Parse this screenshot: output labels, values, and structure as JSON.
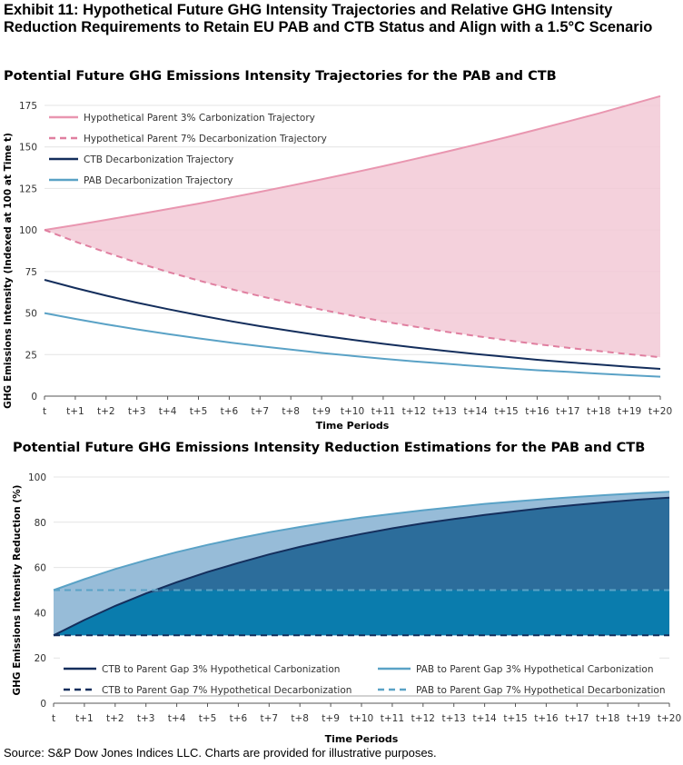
{
  "exhibit_title": "Exhibit 11: Hypothetical Future GHG Intensity Trajectories and Relative GHG Intensity Reduction Requirements to Retain EU PAB and CTB Status and Align with a 1.5°C Scenario",
  "source_note": "Source: S&P Dow Jones Indices LLC.  Charts are provided for illustrative purposes.",
  "colors": {
    "parent3": "#e996b0",
    "parent7": "#e07fa0",
    "ctb": "#142e5c",
    "pab": "#5aa2c6",
    "shade_top": "#f2c9d6",
    "gap_light": "#97bcd8",
    "gap_dark": "#2c6d9b",
    "gap_teal": "#0a7cad",
    "axis": "#555555",
    "grid": "#e4e4e4"
  },
  "chart_data": [
    {
      "type": "line",
      "title": "Potential Future GHG Emissions Intensity Trajectories for the PAB and CTB",
      "xlabel": "Time Periods",
      "ylabel": "GHG Emissions Intensity (Indexed at 100 at Time t)",
      "ylim": [
        0,
        175
      ],
      "yticks": [
        "0",
        "25",
        "50",
        "75",
        "100",
        "125",
        "150",
        "175"
      ],
      "categories": [
        "t",
        "t+1",
        "t+2",
        "t+3",
        "t+4",
        "t+5",
        "t+6",
        "t+7",
        "t+8",
        "t+9",
        "t+10",
        "t+11",
        "t+12",
        "t+13",
        "t+14",
        "t+15",
        "t+16",
        "t+17",
        "t+18",
        "t+19",
        "t+20"
      ],
      "series": [
        {
          "name": "Hypothetical Parent 3% Carbonization Trajectory",
          "style": "solid",
          "color_key": "parent3",
          "values": [
            100,
            103,
            106.1,
            109.3,
            112.6,
            115.9,
            119.4,
            123,
            126.7,
            130.5,
            134.4,
            138.4,
            142.6,
            146.9,
            151.3,
            155.8,
            160.5,
            165.3,
            170.2,
            175.4,
            180.6
          ]
        },
        {
          "name": "Hypothetical Parent 7% Decarbonization Trajectory",
          "style": "dashed",
          "color_key": "parent7",
          "values": [
            100,
            93,
            86.5,
            80.4,
            74.8,
            69.6,
            64.7,
            60.2,
            56,
            52,
            48.4,
            45,
            41.9,
            38.9,
            36.2,
            33.7,
            31.3,
            29.1,
            27.1,
            25.2,
            23.4
          ]
        },
        {
          "name": "CTB Decarbonization Trajectory",
          "style": "solid",
          "color_key": "ctb",
          "values": [
            70,
            65.1,
            60.5,
            56.3,
            52.4,
            48.7,
            45.3,
            42.1,
            39.2,
            36.4,
            33.9,
            31.5,
            29.3,
            27.3,
            25.4,
            23.6,
            21.9,
            20.4,
            19,
            17.6,
            16.4
          ]
        },
        {
          "name": "PAB Decarbonization Trajectory",
          "style": "solid",
          "color_key": "pab",
          "values": [
            50,
            46.5,
            43.2,
            40.2,
            37.4,
            34.8,
            32.3,
            30.1,
            28,
            26,
            24.2,
            22.5,
            20.9,
            19.5,
            18.1,
            16.8,
            15.6,
            14.6,
            13.5,
            12.6,
            11.7
          ]
        }
      ],
      "shaded_area_between": [
        "Hypothetical Parent 3% Carbonization Trajectory",
        "Hypothetical Parent 7% Decarbonization Trajectory"
      ]
    },
    {
      "type": "area",
      "title": "Potential Future GHG Emissions Intensity Reduction Estimations for the PAB and CTB",
      "xlabel": "Time Periods",
      "ylabel": "GHG Emissions Intensity Reduction (%)",
      "ylim": [
        0,
        100
      ],
      "yticks": [
        "0",
        "20",
        "40",
        "60",
        "80",
        "100"
      ],
      "categories": [
        "t",
        "t+1",
        "t+2",
        "t+3",
        "t+4",
        "t+5",
        "t+6",
        "t+7",
        "t+8",
        "t+9",
        "t+10",
        "t+11",
        "t+12",
        "t+13",
        "t+14",
        "t+15",
        "t+16",
        "t+17",
        "t+18",
        "t+19",
        "t+20"
      ],
      "series": [
        {
          "name": "CTB to Parent Gap 3% Hypothetical Carbonization",
          "style": "solid",
          "color_key": "ctb",
          "values": [
            30,
            36.8,
            43,
            48.5,
            53.5,
            58,
            62,
            65.8,
            69.1,
            72.1,
            74.8,
            77.3,
            79.5,
            81.4,
            83.2,
            84.8,
            86.4,
            87.7,
            88.9,
            90,
            90.9
          ]
        },
        {
          "name": "PAB to Parent Gap 3% Hypothetical Carbonization",
          "style": "solid",
          "color_key": "pab",
          "values": [
            50,
            54.8,
            59.3,
            63.2,
            66.8,
            70,
            72.9,
            75.6,
            77.9,
            80.1,
            82,
            83.7,
            85.3,
            86.7,
            88.1,
            89.2,
            90.3,
            91.2,
            92.1,
            92.8,
            93.5
          ]
        },
        {
          "name": "CTB to Parent Gap 7% Hypothetical Decarbonization",
          "style": "dashed",
          "color_key": "ctb",
          "values": [
            30,
            30,
            30,
            30,
            30,
            30,
            30,
            30,
            30,
            30,
            30,
            30,
            30,
            30,
            30,
            30,
            30,
            30,
            30,
            30,
            30
          ]
        },
        {
          "name": "PAB to Parent Gap 7% Hypothetical Decarbonization",
          "style": "dashed",
          "color_key": "pab",
          "values": [
            50,
            50,
            50,
            50,
            50,
            50,
            50,
            50,
            50,
            50,
            50,
            50,
            50,
            50,
            50,
            50,
            50,
            50,
            50,
            50,
            50
          ]
        }
      ]
    }
  ]
}
